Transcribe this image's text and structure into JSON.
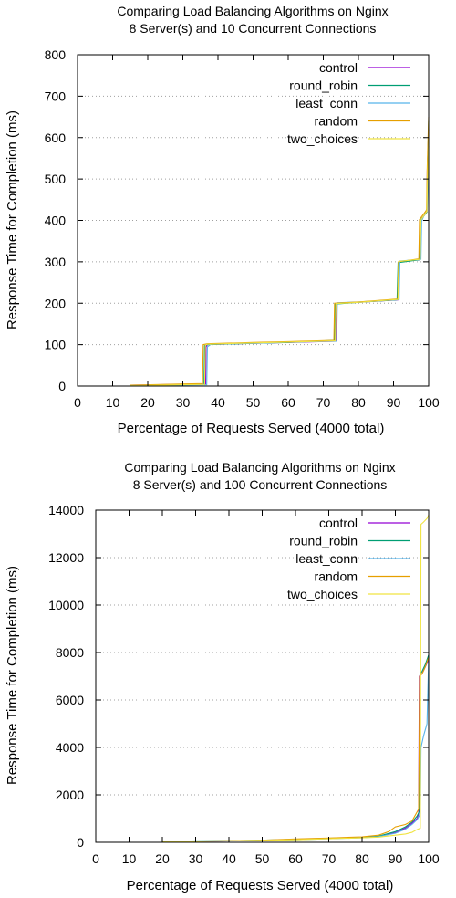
{
  "colors": {
    "control": "#9400d3",
    "round_robin": "#009e73",
    "least_conn": "#56b4e9",
    "random": "#e69f00",
    "two_choices": "#f0e442"
  },
  "chart_data": [
    {
      "type": "line",
      "title_line1": "Comparing Load Balancing Algorithms on Nginx",
      "title_line2": "8 Server(s) and 10 Concurrent Connections",
      "xlabel": "Percentage of Requests Served (4000 total)",
      "ylabel": "Response Time for Completion (ms)",
      "xlim": [
        0,
        100
      ],
      "ylim": [
        0,
        800
      ],
      "xticks": [
        0,
        10,
        20,
        30,
        40,
        50,
        60,
        70,
        80,
        90,
        100
      ],
      "yticks": [
        0,
        100,
        200,
        300,
        400,
        500,
        600,
        700,
        800
      ],
      "grid": true,
      "legend_position": "top-right",
      "series": [
        {
          "name": "control",
          "color_key": "control",
          "x": [
            15,
            36.5,
            36.6,
            37,
            50,
            60,
            73.6,
            73.7,
            80,
            91.4,
            91.5,
            97.5,
            97.6,
            99.5,
            99.6,
            100
          ],
          "y": [
            2,
            5,
            95,
            100,
            103,
            105,
            108,
            200,
            202,
            208,
            300,
            305,
            400,
            420,
            520,
            620
          ]
        },
        {
          "name": "round_robin",
          "color_key": "round_robin",
          "x": [
            15,
            36,
            36.2,
            37,
            50,
            60,
            73.2,
            73.4,
            80,
            91,
            91.3,
            97.4,
            97.6,
            99.5,
            99.7,
            100
          ],
          "y": [
            1,
            4,
            98,
            100,
            103,
            105,
            110,
            198,
            202,
            208,
            298,
            305,
            400,
            420,
            540,
            640
          ]
        },
        {
          "name": "least_conn",
          "color_key": "least_conn",
          "x": [
            15,
            36.8,
            37,
            38,
            50,
            60,
            73.8,
            74,
            80,
            91.6,
            91.8,
            97.8,
            98,
            99.6,
            99.8,
            100
          ],
          "y": [
            1,
            3,
            95,
            101,
            103,
            106,
            108,
            201,
            203,
            209,
            302,
            306,
            398,
            430,
            500,
            580
          ]
        },
        {
          "name": "random",
          "color_key": "random",
          "x": [
            15,
            35.6,
            35.8,
            37,
            50,
            60,
            73,
            73.2,
            80,
            91.2,
            91.4,
            97.2,
            97.4,
            99.4,
            99.6,
            100
          ],
          "y": [
            2,
            6,
            100,
            102,
            105,
            107,
            110,
            200,
            203,
            210,
            300,
            307,
            402,
            425,
            530,
            650
          ]
        },
        {
          "name": "two_choices",
          "color_key": "two_choices",
          "x": [
            15,
            36.2,
            36.4,
            37,
            50,
            60,
            73.4,
            73.6,
            80,
            91.3,
            91.5,
            97.6,
            97.8,
            99.5,
            99.7,
            100
          ],
          "y": [
            1,
            4,
            99,
            101,
            104,
            106,
            109,
            199,
            202,
            209,
            301,
            306,
            401,
            422,
            510,
            600
          ]
        }
      ]
    },
    {
      "type": "line",
      "title_line1": "Comparing Load Balancing Algorithms on Nginx",
      "title_line2": "8 Server(s) and 100 Concurrent Connections",
      "xlabel": "Percentage of Requests Served (4000 total)",
      "ylabel": "Response Time for Completion (ms)",
      "xlim": [
        0,
        100
      ],
      "ylim": [
        0,
        14000
      ],
      "xticks": [
        0,
        10,
        20,
        30,
        40,
        50,
        60,
        70,
        80,
        90,
        100
      ],
      "yticks": [
        0,
        2000,
        4000,
        6000,
        8000,
        10000,
        12000,
        14000
      ],
      "grid": true,
      "legend_position": "top-right",
      "series": [
        {
          "name": "control",
          "color_key": "control",
          "x": [
            20,
            30,
            40,
            50,
            60,
            70,
            80,
            85,
            90,
            93,
            95,
            96.5,
            97,
            97.2,
            98,
            99,
            100
          ],
          "y": [
            20,
            40,
            60,
            80,
            120,
            160,
            200,
            250,
            400,
            600,
            800,
            1000,
            1200,
            7000,
            7100,
            7400,
            7700
          ]
        },
        {
          "name": "round_robin",
          "color_key": "round_robin",
          "x": [
            20,
            30,
            40,
            50,
            60,
            70,
            80,
            85,
            90,
            93,
            95,
            96.5,
            97.2,
            97.4,
            98,
            99,
            100
          ],
          "y": [
            20,
            60,
            70,
            90,
            130,
            170,
            210,
            260,
            450,
            650,
            850,
            1100,
            1300,
            7100,
            7200,
            7500,
            7900
          ]
        },
        {
          "name": "least_conn",
          "color_key": "least_conn",
          "x": [
            20,
            30,
            40,
            50,
            60,
            70,
            80,
            85,
            90,
            93,
            95,
            96.5,
            97.5,
            97.7,
            98.5,
            99.5,
            100
          ],
          "y": [
            20,
            50,
            60,
            80,
            110,
            150,
            190,
            240,
            380,
            550,
            750,
            950,
            1200,
            4000,
            4500,
            5000,
            7800
          ]
        },
        {
          "name": "random",
          "color_key": "random",
          "x": [
            20,
            30,
            40,
            50,
            60,
            70,
            80,
            85,
            88,
            90,
            93,
            95,
            97,
            97.3,
            98,
            99,
            100
          ],
          "y": [
            20,
            50,
            70,
            90,
            140,
            180,
            230,
            300,
            450,
            650,
            750,
            900,
            1400,
            7000,
            7100,
            7400,
            7800
          ]
        },
        {
          "name": "two_choices",
          "color_key": "two_choices",
          "x": [
            20,
            30,
            40,
            50,
            60,
            70,
            80,
            85,
            90,
            93,
            95,
            96,
            97.5,
            97.7,
            98.5,
            99.5,
            100
          ],
          "y": [
            15,
            40,
            60,
            80,
            110,
            150,
            190,
            220,
            300,
            350,
            420,
            500,
            600,
            13400,
            13500,
            13650,
            13800
          ]
        }
      ]
    }
  ]
}
